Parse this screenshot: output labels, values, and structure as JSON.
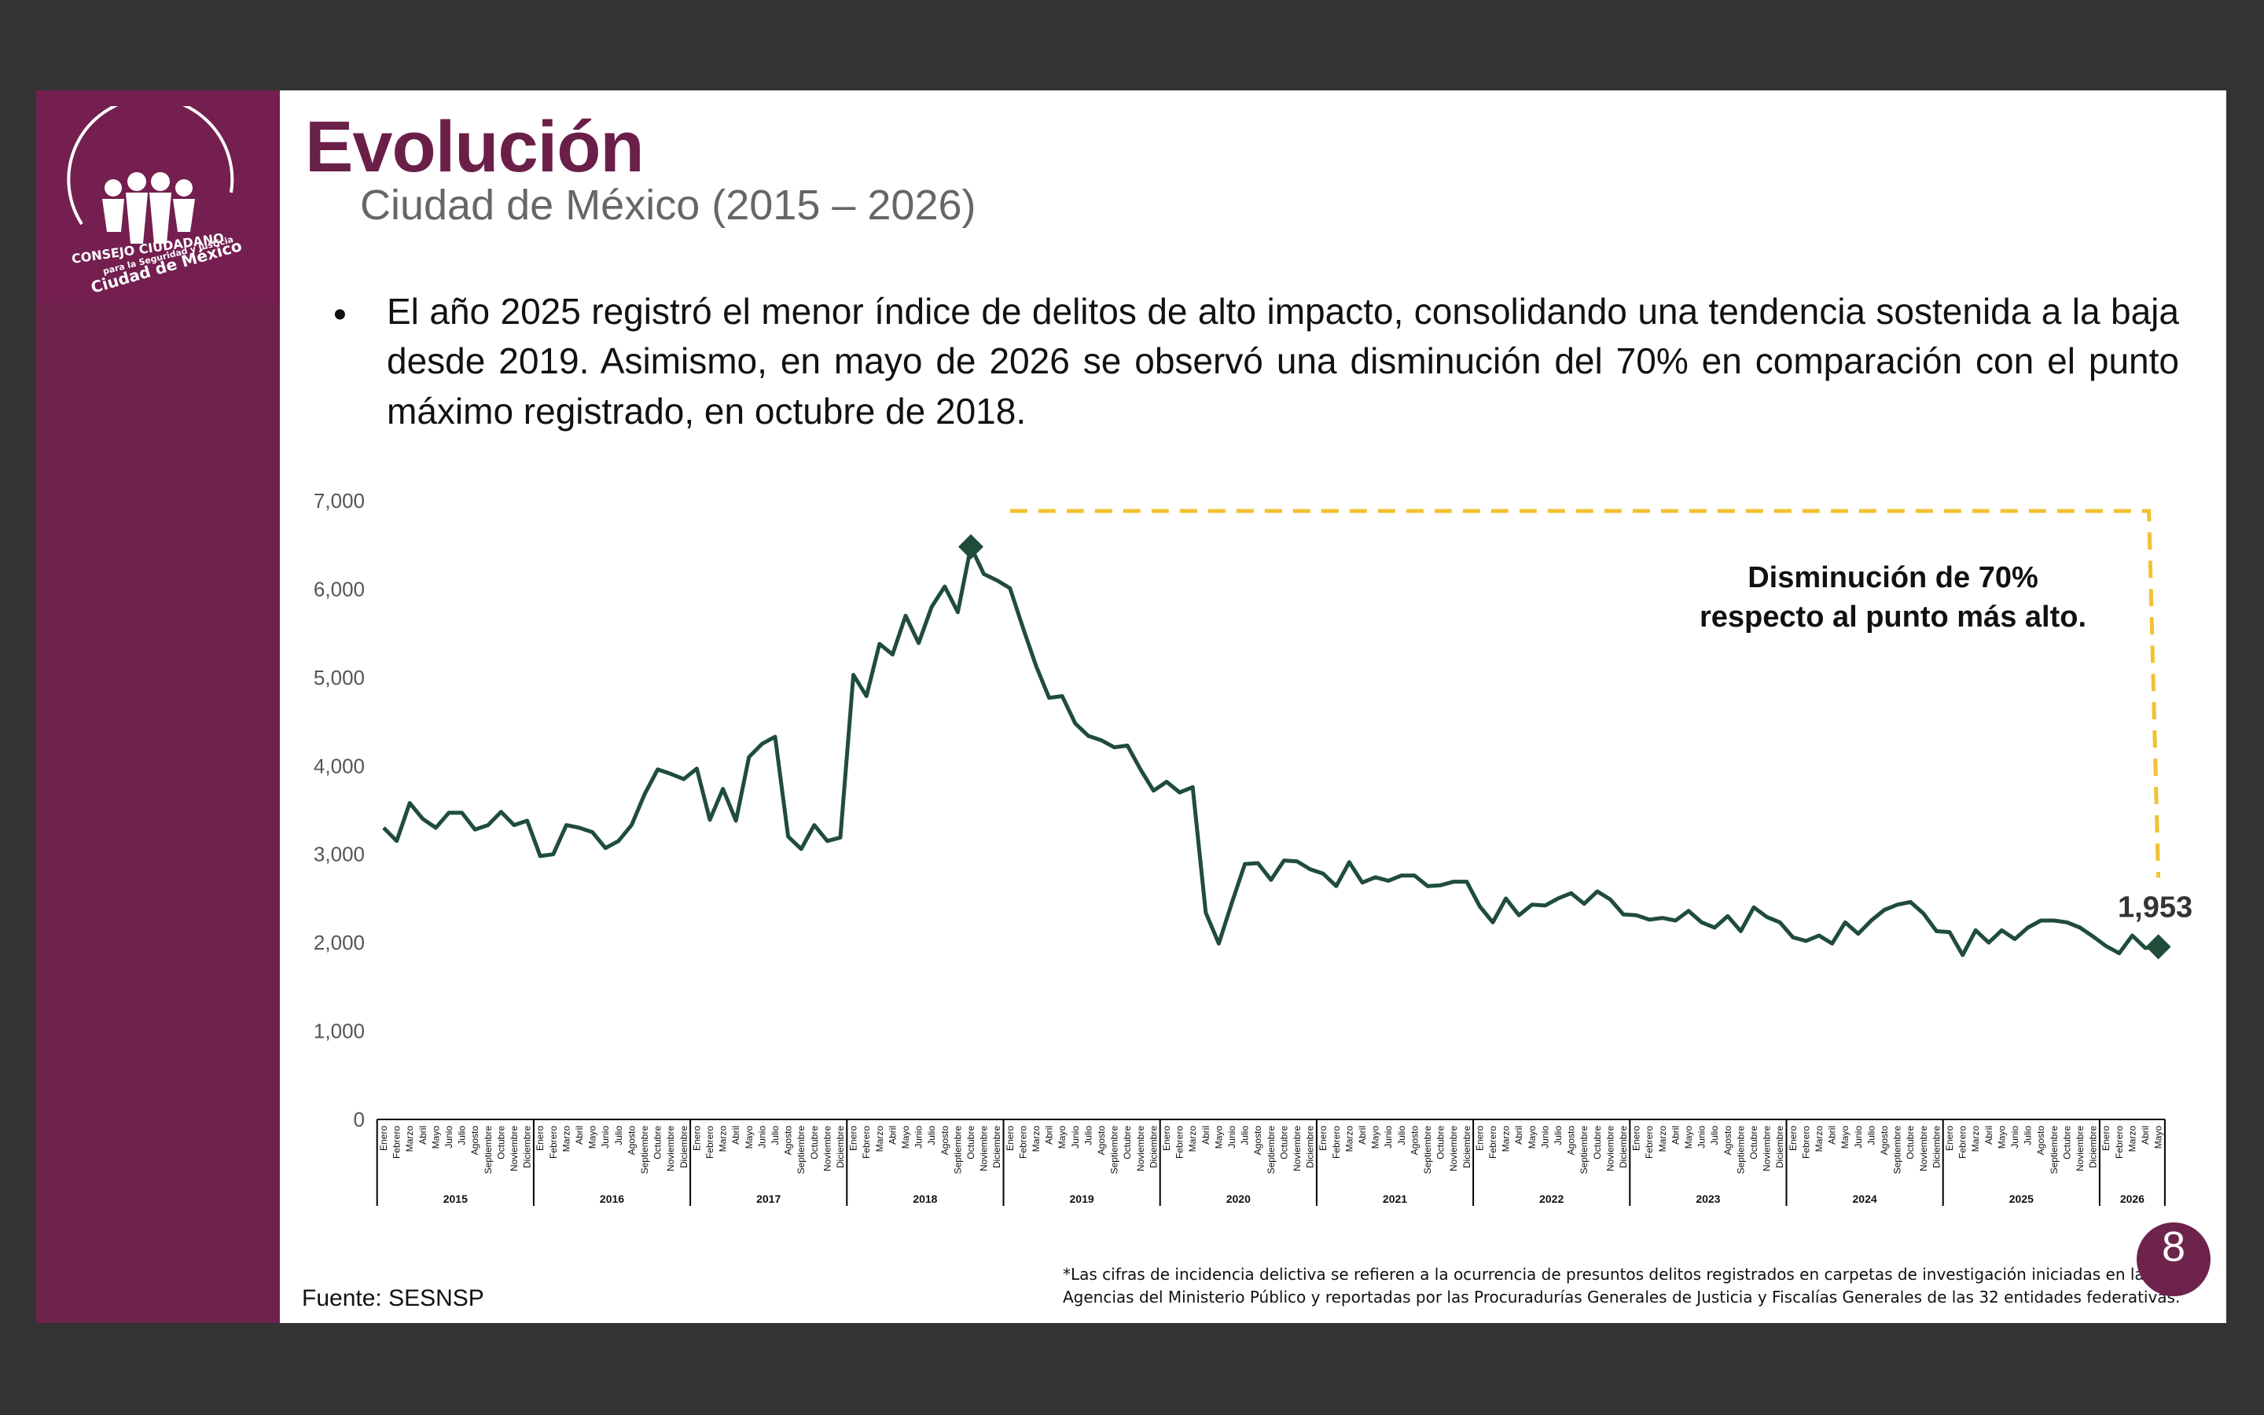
{
  "slide": {
    "title": "Evolución",
    "subtitle": "Ciudad de México (2015 – 2026)",
    "bullet": "El año 2025 registró el menor índice de delitos de alto impacto, consolidando una tendencia sostenida a la baja desde 2019. Asimismo, en mayo de 2026 se observó una disminución del 70% en comparación con el punto máximo registrado, en octubre de 2018.",
    "source": "Fuente: SESNSP",
    "footnote": "*Las cifras de incidencia delictiva se refieren a la ocurrencia de presuntos delitos registrados en carpetas de investigación iniciadas en las Agencias del Ministerio Público y reportadas por las Procuradurías Generales de Justicia y Fiscalías Generales de las 32 entidades federativas.",
    "page_number": "8"
  },
  "logo": {
    "line1": "CONSEJO CIUDADANO",
    "line2": "para la Seguridad y Justicia",
    "line3": "Ciudad de México"
  },
  "colors": {
    "sidebar": "#6e234d",
    "title": "#6a1f48",
    "line": "#1f4d3a",
    "annotation_dash": "#f1c232"
  },
  "chart_data": {
    "type": "line",
    "ylim": [
      0,
      7000
    ],
    "yticks": [
      "7,000",
      "6,000",
      "5,000",
      "4,000",
      "3,000",
      "2,000",
      "1,000",
      "0"
    ],
    "months": [
      "Enero",
      "Febrero",
      "Marzo",
      "Abril",
      "Mayo",
      "Junio",
      "Julio",
      "Agosto",
      "Septiembre",
      "Octubre",
      "Noviembre",
      "Diciembre"
    ],
    "years": [
      "2015",
      "2016",
      "2017",
      "2018",
      "2019",
      "2020",
      "2021",
      "2022",
      "2023",
      "2024",
      "2025",
      "2026"
    ],
    "start": "2015-01",
    "end": "2026-05",
    "series": [
      {
        "values": [
          3300,
          3150,
          3580,
          3400,
          3300,
          3470,
          3470,
          3280,
          3330,
          3480,
          3330,
          3380,
          2980,
          3000,
          3330,
          3300,
          3250,
          3070,
          3150,
          3330,
          3680,
          3960,
          3910,
          3850,
          3970,
          3390,
          3740,
          3380,
          4100,
          4250,
          4330,
          3200,
          3060,
          3330,
          3150,
          3190,
          5030,
          4790,
          5380,
          5260,
          5700,
          5390,
          5800,
          6030,
          5740,
          6480,
          6170,
          6100,
          6010,
          5560,
          5130,
          4770,
          4790,
          4480,
          4340,
          4290,
          4210,
          4230,
          3960,
          3720,
          3820,
          3700,
          3760,
          2340,
          1990,
          2450,
          2890,
          2900,
          2710,
          2930,
          2920,
          2830,
          2780,
          2640,
          2910,
          2680,
          2740,
          2700,
          2760,
          2760,
          2640,
          2650,
          2690,
          2690,
          2410,
          2230,
          2500,
          2310,
          2430,
          2420,
          2500,
          2560,
          2440,
          2580,
          2490,
          2320,
          2310,
          2260,
          2280,
          2250,
          2360,
          2230,
          2170,
          2300,
          2130,
          2400,
          2290,
          2230,
          2060,
          2020,
          2080,
          1990,
          2230,
          2100,
          2250,
          2370,
          2430,
          2460,
          2330,
          2130,
          2120,
          1860,
          2140,
          2000,
          2140,
          2040,
          2170,
          2250,
          2250,
          2230,
          2170,
          2070,
          1960,
          1880,
          2080,
          1940,
          1953
        ]
      }
    ],
    "peak": {
      "label": "Octubre 2018",
      "value": 6480
    },
    "end_point": {
      "label": "Mayo 2026",
      "value": 1953,
      "value_label": "1,953"
    },
    "annotation": [
      "Disminución de 70%",
      "respecto al punto más alto."
    ]
  }
}
